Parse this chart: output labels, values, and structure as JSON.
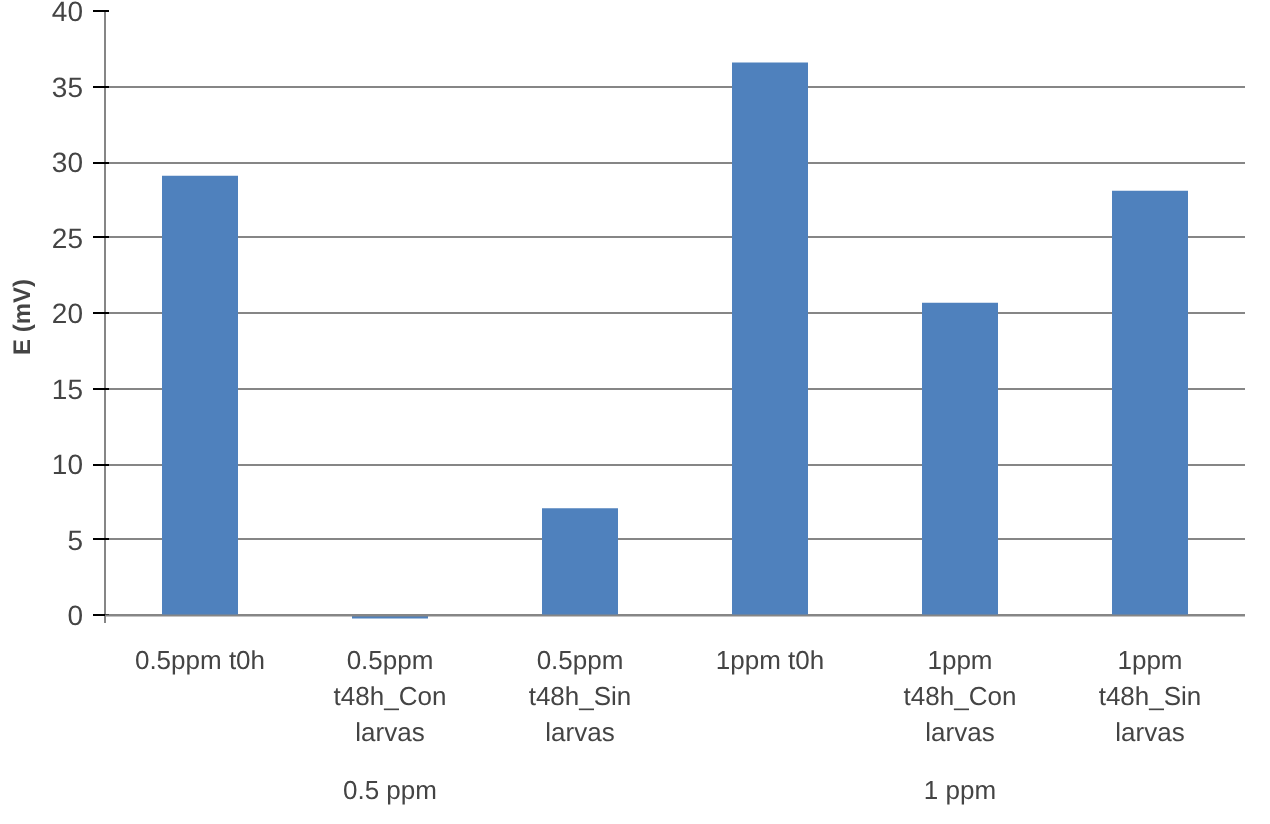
{
  "chart_data": {
    "type": "bar",
    "ylabel": "E (mV)",
    "categories": [
      "0.5ppm t0h",
      "0.5ppm t48h_Con larvas",
      "0.5ppm t48h_Sin larvas",
      "1ppm t0h",
      "1ppm t48h_Con larvas",
      "1ppm t48h_Sin larvas"
    ],
    "values": [
      29.1,
      -0.2,
      7.1,
      36.6,
      20.7,
      28.1
    ],
    "color": "#4f81bd",
    "ylim": [
      -0.5,
      40
    ],
    "yticks": [
      0,
      5,
      10,
      15,
      20,
      25,
      30,
      35,
      40
    ],
    "grid": "y",
    "annotations": [
      "0.5 ppm",
      "1 ppm"
    ]
  }
}
